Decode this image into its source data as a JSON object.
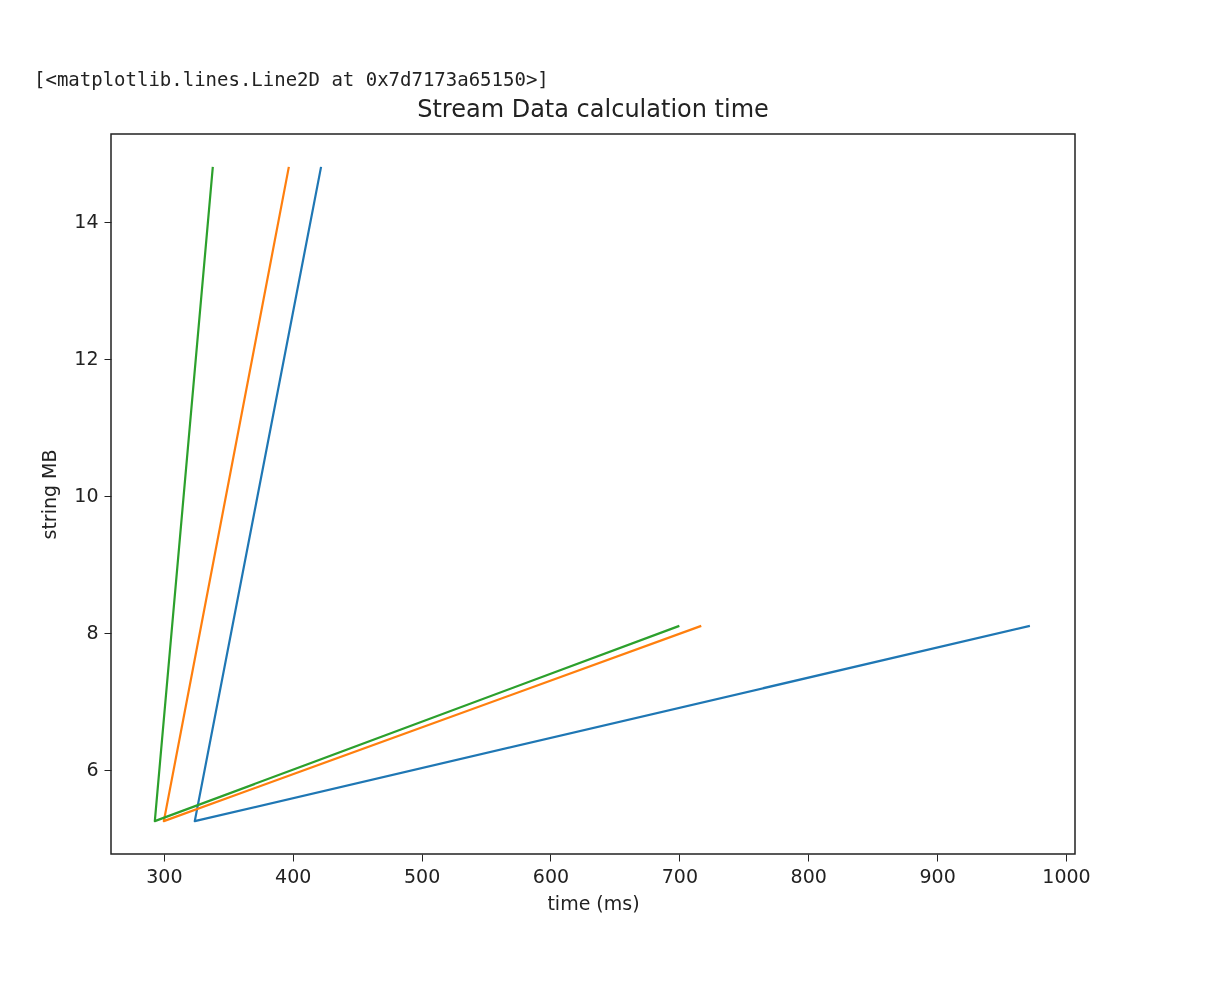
{
  "chart_data": {
    "type": "line",
    "title": "Stream Data calculation time",
    "xlabel": "time (ms)",
    "ylabel": "string MB",
    "annotations": [
      "[<matplotlib.lines.Line2D at 0x7d7173a65150>]"
    ],
    "series": [
      {
        "color": "#1f77b4",
        "x": [
          422,
          324,
          972
        ],
        "values": [
          14.8,
          5.25,
          8.1
        ]
      },
      {
        "color": "#ff7f0e",
        "x": [
          397,
          300,
          717
        ],
        "values": [
          14.8,
          5.25,
          8.1
        ]
      },
      {
        "color": "#2ca02c",
        "x": [
          338,
          293,
          700
        ],
        "values": [
          14.8,
          5.25,
          8.1
        ]
      }
    ],
    "xlim": [
      259,
      1007
    ],
    "ylim": [
      4.77,
      15.28
    ],
    "xticks": [
      300,
      400,
      500,
      600,
      700,
      800,
      900,
      1000
    ],
    "yticks": [
      6,
      8,
      10,
      12,
      14
    ],
    "grid": false
  }
}
